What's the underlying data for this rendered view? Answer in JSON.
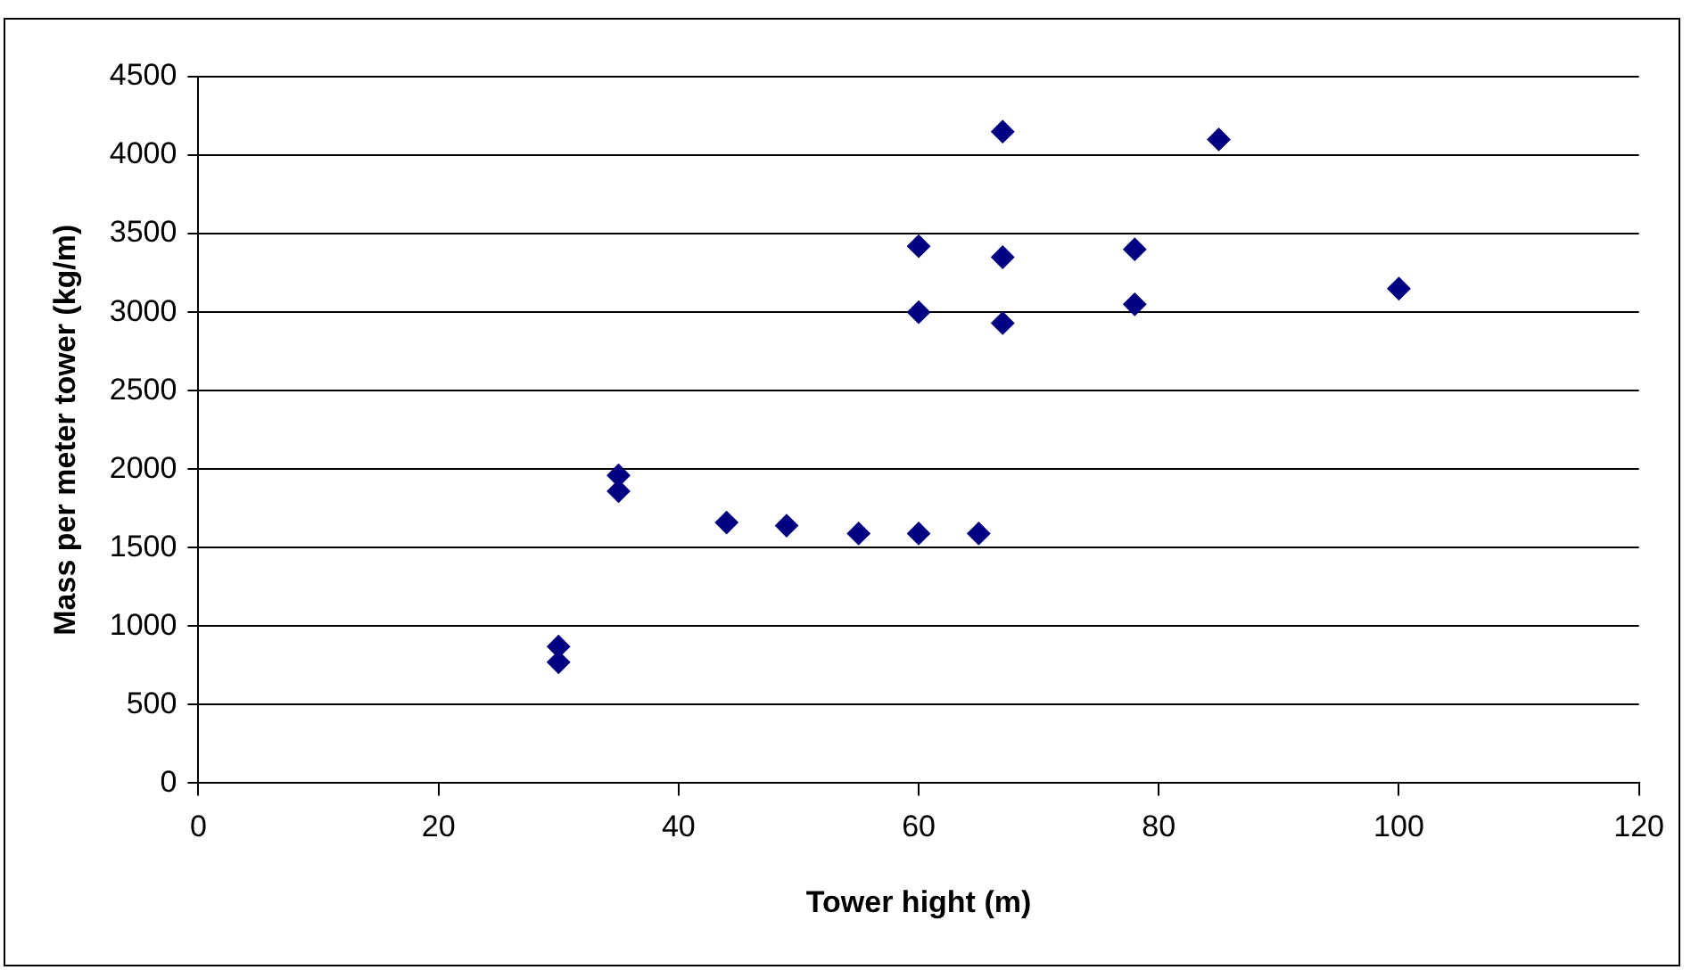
{
  "chart_data": {
    "type": "scatter",
    "xlabel": "Tower hight (m)",
    "ylabel": "Mass per meter tower (kg/m)",
    "x": [
      30,
      30,
      35,
      35,
      44,
      49,
      55,
      60,
      65,
      60,
      60,
      67,
      67,
      67,
      78,
      78,
      85,
      100
    ],
    "series": [
      {
        "color": "#000080",
        "values": [
          870,
          770,
          1960,
          1860,
          1660,
          1640,
          1590,
          1590,
          1590,
          3420,
          3000,
          4150,
          3350,
          2930,
          3400,
          3050,
          4100,
          3150
        ]
      }
    ],
    "xlim": [
      0,
      120
    ],
    "xticks": [
      0,
      20,
      40,
      60,
      80,
      100,
      120
    ],
    "ylim": [
      0,
      4500
    ],
    "yticks": [
      0,
      500,
      1000,
      1500,
      2000,
      2500,
      3000,
      3500,
      4000,
      4500
    ],
    "grid": "y",
    "legend": false,
    "marker": "diamond"
  }
}
